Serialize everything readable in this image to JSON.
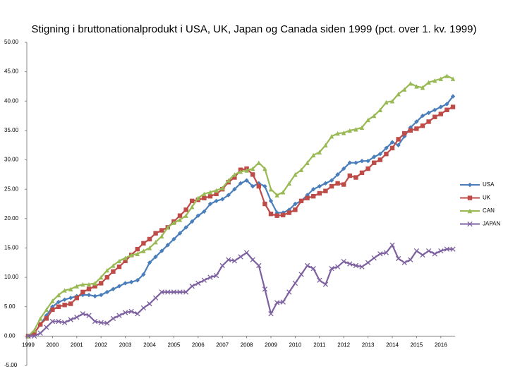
{
  "chart_data": {
    "type": "line",
    "title": "Stigning i bruttonationalprodukt i USA, UK, Japan og Canada siden 1999 (pct. over 1. kv. 1999)",
    "categories": [
      "1999",
      null,
      null,
      null,
      "2000",
      null,
      null,
      null,
      "2001",
      null,
      null,
      null,
      "2002",
      null,
      null,
      null,
      "2003",
      null,
      null,
      null,
      "2004",
      null,
      null,
      null,
      "2005",
      null,
      null,
      null,
      "2006",
      null,
      null,
      null,
      "2007",
      null,
      null,
      null,
      "2008",
      null,
      null,
      null,
      "2009",
      null,
      null,
      null,
      "2010",
      null,
      null,
      null,
      "2011",
      null,
      null,
      null,
      "2012",
      null,
      null,
      null,
      "2013",
      null,
      null,
      null,
      "2014",
      null,
      null,
      null,
      "2015",
      null,
      null,
      null,
      "2016",
      null,
      null
    ],
    "series": [
      {
        "name": "USA",
        "color": "#4a7ebb",
        "marker": "diamond",
        "values": [
          0,
          0.5,
          2,
          3.5,
          5,
          5.8,
          6.2,
          6.5,
          6.8,
          7,
          7,
          6.8,
          7,
          7.5,
          8,
          8.5,
          9,
          9.2,
          9.5,
          10.5,
          12.5,
          13.5,
          14.5,
          15.5,
          16.5,
          17.5,
          18.5,
          19.5,
          20.5,
          21.2,
          22.5,
          23,
          23.3,
          24,
          25,
          26,
          26.5,
          25.5,
          26,
          25.5,
          23,
          21,
          21,
          21.5,
          22.5,
          23,
          24,
          25,
          25.5,
          26,
          26.5,
          27.5,
          28.5,
          29.5,
          29.5,
          29.8,
          29.8,
          30.5,
          31,
          32,
          33,
          32.5,
          34,
          35.5,
          36.5,
          37.5,
          38,
          38.5,
          39,
          39.5,
          40.8
        ]
      },
      {
        "name": "UK",
        "color": "#be4b48",
        "marker": "square",
        "values": [
          0,
          0.5,
          2,
          3,
          4.5,
          5,
          5.3,
          5.5,
          6.5,
          7.5,
          8,
          8.5,
          9,
          10,
          11,
          11.8,
          12.8,
          13.8,
          14.8,
          15.8,
          16.5,
          17.5,
          18,
          18.5,
          19.5,
          20.5,
          21.5,
          23,
          23.2,
          23.5,
          23.8,
          24.2,
          25,
          26.2,
          27,
          28.3,
          28.5,
          27.5,
          25.5,
          22.5,
          20.8,
          20.5,
          20.6,
          21,
          21.5,
          23,
          23.5,
          23.8,
          24.3,
          24.7,
          25.5,
          26,
          25.8,
          27.3,
          27,
          27.8,
          28.5,
          29.5,
          30,
          31,
          32,
          33.5,
          34.5,
          35,
          35.3,
          35.8,
          36.5,
          37.3,
          37.8,
          38.5,
          39
        ]
      },
      {
        "name": "CAN",
        "color": "#98b954",
        "marker": "triangle",
        "values": [
          0,
          1,
          3,
          4.5,
          6,
          7,
          7.8,
          8,
          8.5,
          8.8,
          8.8,
          9,
          10,
          11.2,
          12,
          12.8,
          13.3,
          13.8,
          14,
          14.5,
          15,
          16,
          17,
          18.5,
          19.3,
          19.8,
          20.5,
          22,
          23.5,
          24.2,
          24.5,
          24.8,
          25.2,
          26.5,
          27.5,
          28,
          28.2,
          28.5,
          29.5,
          28.5,
          25,
          24,
          24.5,
          26,
          27.5,
          28.3,
          29.5,
          30.8,
          31.3,
          32.5,
          34,
          34.5,
          34.6,
          35,
          35.2,
          35.5,
          36.8,
          37.5,
          38.5,
          39.8,
          40,
          41.2,
          42,
          43,
          42.5,
          42.3,
          43.2,
          43.5,
          43.8,
          44.3,
          43.8
        ]
      },
      {
        "name": "JAPAN",
        "color": "#7d60a0",
        "marker": "x",
        "values": [
          0,
          0,
          0.5,
          1.5,
          2.5,
          2.5,
          2.3,
          2.8,
          3.2,
          3.8,
          3.5,
          2.5,
          2.3,
          2.2,
          3,
          3.5,
          4,
          4.2,
          3.8,
          4.8,
          5.5,
          6.5,
          7.5,
          7.5,
          7.5,
          7.5,
          7.5,
          8.5,
          9,
          9.5,
          10,
          10.3,
          12,
          13,
          12.8,
          13.5,
          14.2,
          13,
          12,
          8,
          3.8,
          5.7,
          5.8,
          7.5,
          9,
          10.5,
          12,
          11.5,
          9.5,
          8.8,
          11.5,
          11.8,
          12.7,
          12.3,
          12,
          11.8,
          12.5,
          13.3,
          14,
          14.2,
          15.5,
          13.2,
          12.5,
          13,
          14.5,
          13.8,
          14.5,
          14,
          14.5,
          14.8,
          14.8
        ]
      }
    ],
    "ylim": [
      -5,
      50
    ],
    "yticks": [
      {
        "value": -5,
        "label": "-5.00"
      },
      {
        "value": 0,
        "label": "0.00"
      },
      {
        "value": 5,
        "label": "5.00"
      },
      {
        "value": 10,
        "label": "10.00"
      },
      {
        "value": 15,
        "label": "15.00"
      },
      {
        "value": 20,
        "label": "20.00"
      },
      {
        "value": 25,
        "label": "25.00"
      },
      {
        "value": 30,
        "label": "30.00"
      },
      {
        "value": 35,
        "label": "35.00"
      },
      {
        "value": 40,
        "label": "40.00"
      },
      {
        "value": 45,
        "label": "45.00"
      },
      {
        "value": 50,
        "label": "50.00"
      }
    ],
    "grid": false,
    "legend": "right"
  }
}
